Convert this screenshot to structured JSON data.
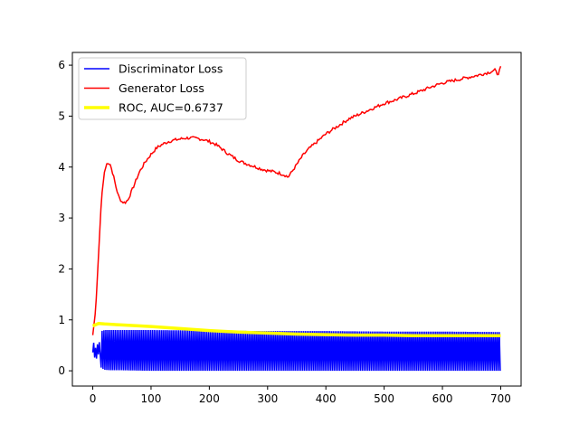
{
  "chart_data": {
    "type": "line",
    "title": "",
    "xlabel": "",
    "ylabel": "",
    "xlim": [
      -35,
      735
    ],
    "ylim": [
      -0.3,
      6.25
    ],
    "xticks": [
      0,
      100,
      200,
      300,
      400,
      500,
      600,
      700
    ],
    "yticks": [
      0,
      1,
      2,
      3,
      4,
      5,
      6
    ],
    "grid": false,
    "legend_position": "top-left",
    "series": [
      {
        "name": "Discriminator Loss",
        "color": "#0000ff",
        "style": "oscillating",
        "x": [
          0,
          5,
          10,
          15,
          20,
          30,
          50,
          100,
          200,
          300,
          400,
          500,
          600,
          700
        ],
        "upper": [
          0.48,
          0.35,
          0.75,
          0.78,
          0.8,
          0.8,
          0.8,
          0.8,
          0.79,
          0.78,
          0.78,
          0.77,
          0.77,
          0.76
        ],
        "lower": [
          0.48,
          0.3,
          0.15,
          0.05,
          0.02,
          0.01,
          0.01,
          0.0,
          0.0,
          0.0,
          0.0,
          0.0,
          0.0,
          0.0
        ]
      },
      {
        "name": "Generator Loss",
        "color": "#ff0000",
        "x": [
          0,
          5,
          10,
          15,
          20,
          25,
          30,
          35,
          40,
          45,
          50,
          55,
          60,
          65,
          70,
          80,
          90,
          100,
          110,
          120,
          130,
          140,
          150,
          160,
          170,
          180,
          190,
          200,
          210,
          220,
          230,
          240,
          250,
          260,
          270,
          280,
          290,
          300,
          310,
          320,
          330,
          335,
          340,
          350,
          360,
          370,
          380,
          390,
          400,
          420,
          440,
          460,
          480,
          500,
          520,
          540,
          560,
          580,
          600,
          620,
          640,
          660,
          680,
          690,
          695,
          700
        ],
        "values": [
          0.7,
          1.2,
          2.3,
          3.4,
          3.9,
          4.1,
          4.05,
          3.85,
          3.6,
          3.4,
          3.32,
          3.3,
          3.35,
          3.48,
          3.62,
          3.9,
          4.1,
          4.25,
          4.38,
          4.45,
          4.5,
          4.53,
          4.55,
          4.57,
          4.57,
          4.56,
          4.54,
          4.5,
          4.45,
          4.37,
          4.28,
          4.2,
          4.13,
          4.08,
          4.04,
          4.0,
          3.96,
          3.93,
          3.91,
          3.88,
          3.84,
          3.8,
          3.88,
          4.05,
          4.22,
          4.35,
          4.45,
          4.55,
          4.65,
          4.8,
          4.95,
          5.05,
          5.15,
          5.25,
          5.32,
          5.4,
          5.48,
          5.57,
          5.65,
          5.7,
          5.75,
          5.8,
          5.86,
          5.9,
          5.82,
          5.95
        ]
      },
      {
        "name": "ROC, AUC=0.6737",
        "color": "#ffff00",
        "x": [
          0,
          10,
          20,
          50,
          100,
          150,
          200,
          250,
          300,
          350,
          400,
          450,
          500,
          550,
          600,
          650,
          700
        ],
        "values": [
          0.88,
          0.93,
          0.92,
          0.9,
          0.87,
          0.83,
          0.79,
          0.76,
          0.74,
          0.72,
          0.71,
          0.7,
          0.7,
          0.69,
          0.69,
          0.69,
          0.69
        ]
      }
    ]
  }
}
